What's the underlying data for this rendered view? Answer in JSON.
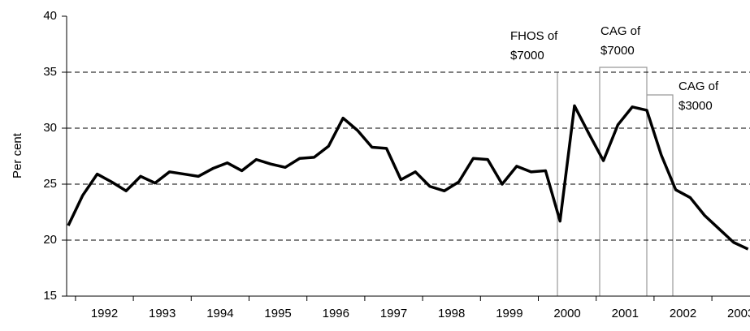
{
  "chart_data": {
    "type": "line",
    "y_label": "Per cent",
    "categories": [
      null,
      "1992",
      null,
      null,
      null,
      "1993",
      null,
      null,
      null,
      "1994",
      null,
      null,
      null,
      "1995",
      null,
      null,
      null,
      "1996",
      null,
      null,
      null,
      "1997",
      null,
      null,
      null,
      "1998",
      null,
      null,
      null,
      "1999",
      null,
      null,
      null,
      "2000",
      null,
      null,
      null,
      "2001",
      null,
      null,
      null,
      "2002",
      null,
      null,
      null,
      "2003",
      null,
      null
    ],
    "series": [
      {
        "name": "Per cent",
        "color": "#000000",
        "values": [
          21.3,
          24.0,
          25.9,
          25.2,
          24.4,
          25.7,
          25.1,
          26.1,
          25.9,
          25.7,
          26.4,
          26.9,
          26.2,
          27.2,
          26.8,
          26.5,
          27.3,
          27.4,
          28.4,
          30.9,
          29.8,
          28.3,
          28.2,
          25.4,
          26.1,
          24.8,
          24.4,
          25.2,
          27.3,
          27.2,
          25.0,
          26.6,
          26.1,
          26.2,
          21.7,
          32.0,
          29.5,
          27.1,
          30.3,
          31.9,
          31.6,
          27.6,
          24.5,
          23.8,
          22.2,
          21.0,
          19.8,
          19.2
        ]
      }
    ],
    "ylim": [
      15,
      40
    ],
    "yticks": [
      15,
      20,
      25,
      30,
      35,
      40
    ],
    "grid": true,
    "annotations": [
      [
        "FHOS of",
        "$7000"
      ],
      [
        "CAG of",
        "$7000"
      ],
      [
        "CAG of",
        "$3000"
      ]
    ]
  }
}
